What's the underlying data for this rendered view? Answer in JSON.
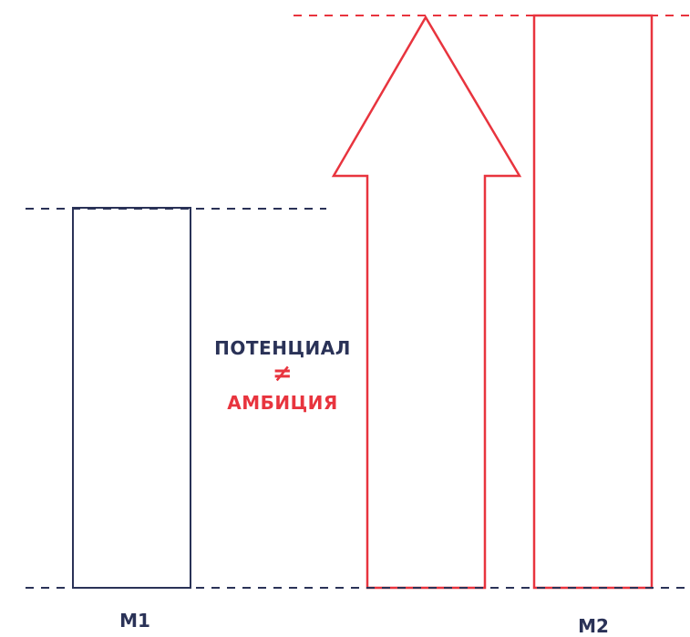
{
  "colors": {
    "navy": "#2a3257",
    "red": "#e8343e"
  },
  "captions": {
    "potential": "ПОТЕНЦИАЛ",
    "not_equal": "≠",
    "ambition": "АМБИЦИЯ"
  },
  "labels": {
    "m1": "M1",
    "m2": "M2"
  }
}
